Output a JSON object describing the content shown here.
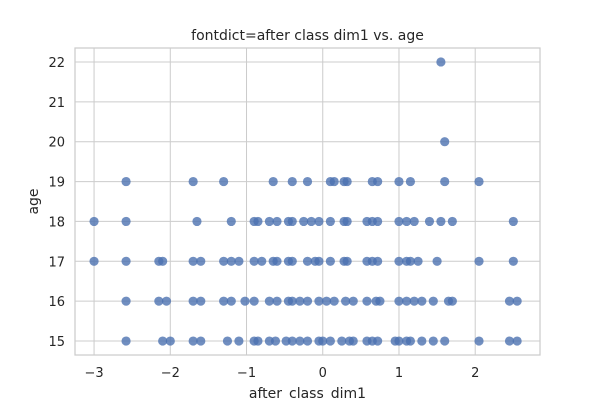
{
  "chart_data": {
    "type": "scatter",
    "title": "fontdict=after class dim1 vs. age",
    "xlabel": "after_class_dim1",
    "ylabel": "age",
    "xlim": [
      -3.25,
      2.85
    ],
    "ylim": [
      14.65,
      22.35
    ],
    "xticks": [
      -3,
      -2,
      -1,
      0,
      1,
      2
    ],
    "yticks": [
      15,
      16,
      17,
      18,
      19,
      20,
      21,
      22
    ],
    "grid": true,
    "marker_color": "#4c72b0",
    "points": [
      {
        "x": -2.58,
        "y": 15
      },
      {
        "x": -2.1,
        "y": 15
      },
      {
        "x": -2.0,
        "y": 15
      },
      {
        "x": -1.7,
        "y": 15
      },
      {
        "x": -1.6,
        "y": 15
      },
      {
        "x": -1.25,
        "y": 15
      },
      {
        "x": -1.1,
        "y": 15
      },
      {
        "x": -0.9,
        "y": 15
      },
      {
        "x": -0.85,
        "y": 15
      },
      {
        "x": -0.7,
        "y": 15
      },
      {
        "x": -0.62,
        "y": 15
      },
      {
        "x": -0.48,
        "y": 15
      },
      {
        "x": -0.4,
        "y": 15
      },
      {
        "x": -0.3,
        "y": 15
      },
      {
        "x": -0.2,
        "y": 15
      },
      {
        "x": -0.05,
        "y": 15
      },
      {
        "x": 0.0,
        "y": 15
      },
      {
        "x": 0.1,
        "y": 15
      },
      {
        "x": 0.25,
        "y": 15
      },
      {
        "x": 0.35,
        "y": 15
      },
      {
        "x": 0.4,
        "y": 15
      },
      {
        "x": 0.58,
        "y": 15
      },
      {
        "x": 0.65,
        "y": 15
      },
      {
        "x": 0.72,
        "y": 15
      },
      {
        "x": 0.95,
        "y": 15
      },
      {
        "x": 1.0,
        "y": 15
      },
      {
        "x": 1.1,
        "y": 15
      },
      {
        "x": 1.15,
        "y": 15
      },
      {
        "x": 1.3,
        "y": 15
      },
      {
        "x": 1.45,
        "y": 15
      },
      {
        "x": 1.6,
        "y": 15
      },
      {
        "x": 2.05,
        "y": 15
      },
      {
        "x": 2.45,
        "y": 15
      },
      {
        "x": 2.55,
        "y": 15
      },
      {
        "x": -2.58,
        "y": 16
      },
      {
        "x": -2.15,
        "y": 16
      },
      {
        "x": -2.05,
        "y": 16
      },
      {
        "x": -1.7,
        "y": 16
      },
      {
        "x": -1.6,
        "y": 16
      },
      {
        "x": -1.3,
        "y": 16
      },
      {
        "x": -1.2,
        "y": 16
      },
      {
        "x": -1.02,
        "y": 16
      },
      {
        "x": -0.9,
        "y": 16
      },
      {
        "x": -0.7,
        "y": 16
      },
      {
        "x": -0.6,
        "y": 16
      },
      {
        "x": -0.45,
        "y": 16
      },
      {
        "x": -0.4,
        "y": 16
      },
      {
        "x": -0.3,
        "y": 16
      },
      {
        "x": -0.2,
        "y": 16
      },
      {
        "x": -0.05,
        "y": 16
      },
      {
        "x": 0.05,
        "y": 16
      },
      {
        "x": 0.15,
        "y": 16
      },
      {
        "x": 0.3,
        "y": 16
      },
      {
        "x": 0.4,
        "y": 16
      },
      {
        "x": 0.58,
        "y": 16
      },
      {
        "x": 0.7,
        "y": 16
      },
      {
        "x": 0.75,
        "y": 16
      },
      {
        "x": 1.0,
        "y": 16
      },
      {
        "x": 1.1,
        "y": 16
      },
      {
        "x": 1.2,
        "y": 16
      },
      {
        "x": 1.3,
        "y": 16
      },
      {
        "x": 1.45,
        "y": 16
      },
      {
        "x": 1.65,
        "y": 16
      },
      {
        "x": 1.7,
        "y": 16
      },
      {
        "x": 2.45,
        "y": 16
      },
      {
        "x": 2.55,
        "y": 16
      },
      {
        "x": -3.0,
        "y": 17
      },
      {
        "x": -2.58,
        "y": 17
      },
      {
        "x": -2.15,
        "y": 17
      },
      {
        "x": -2.1,
        "y": 17
      },
      {
        "x": -1.7,
        "y": 17
      },
      {
        "x": -1.6,
        "y": 17
      },
      {
        "x": -1.3,
        "y": 17
      },
      {
        "x": -1.2,
        "y": 17
      },
      {
        "x": -1.1,
        "y": 17
      },
      {
        "x": -0.9,
        "y": 17
      },
      {
        "x": -0.8,
        "y": 17
      },
      {
        "x": -0.65,
        "y": 17
      },
      {
        "x": -0.6,
        "y": 17
      },
      {
        "x": -0.45,
        "y": 17
      },
      {
        "x": -0.4,
        "y": 17
      },
      {
        "x": -0.2,
        "y": 17
      },
      {
        "x": -0.1,
        "y": 17
      },
      {
        "x": -0.05,
        "y": 17
      },
      {
        "x": 0.1,
        "y": 17
      },
      {
        "x": 0.28,
        "y": 17
      },
      {
        "x": 0.32,
        "y": 17
      },
      {
        "x": 0.58,
        "y": 17
      },
      {
        "x": 0.65,
        "y": 17
      },
      {
        "x": 0.72,
        "y": 17
      },
      {
        "x": 1.0,
        "y": 17
      },
      {
        "x": 1.1,
        "y": 17
      },
      {
        "x": 1.15,
        "y": 17
      },
      {
        "x": 1.25,
        "y": 17
      },
      {
        "x": 1.5,
        "y": 17
      },
      {
        "x": 2.05,
        "y": 17
      },
      {
        "x": 2.5,
        "y": 17
      },
      {
        "x": -3.0,
        "y": 18
      },
      {
        "x": -2.58,
        "y": 18
      },
      {
        "x": -1.65,
        "y": 18
      },
      {
        "x": -1.2,
        "y": 18
      },
      {
        "x": -0.9,
        "y": 18
      },
      {
        "x": -0.85,
        "y": 18
      },
      {
        "x": -0.7,
        "y": 18
      },
      {
        "x": -0.6,
        "y": 18
      },
      {
        "x": -0.45,
        "y": 18
      },
      {
        "x": -0.4,
        "y": 18
      },
      {
        "x": -0.25,
        "y": 18
      },
      {
        "x": -0.15,
        "y": 18
      },
      {
        "x": -0.05,
        "y": 18
      },
      {
        "x": 0.1,
        "y": 18
      },
      {
        "x": 0.28,
        "y": 18
      },
      {
        "x": 0.32,
        "y": 18
      },
      {
        "x": 0.58,
        "y": 18
      },
      {
        "x": 0.65,
        "y": 18
      },
      {
        "x": 0.72,
        "y": 18
      },
      {
        "x": 1.0,
        "y": 18
      },
      {
        "x": 1.1,
        "y": 18
      },
      {
        "x": 1.2,
        "y": 18
      },
      {
        "x": 1.4,
        "y": 18
      },
      {
        "x": 1.55,
        "y": 18
      },
      {
        "x": 1.7,
        "y": 18
      },
      {
        "x": 2.5,
        "y": 18
      },
      {
        "x": -2.58,
        "y": 19
      },
      {
        "x": -1.7,
        "y": 19
      },
      {
        "x": -1.3,
        "y": 19
      },
      {
        "x": -0.65,
        "y": 19
      },
      {
        "x": -0.4,
        "y": 19
      },
      {
        "x": -0.2,
        "y": 19
      },
      {
        "x": 0.1,
        "y": 19
      },
      {
        "x": 0.15,
        "y": 19
      },
      {
        "x": 0.28,
        "y": 19
      },
      {
        "x": 0.32,
        "y": 19
      },
      {
        "x": 0.65,
        "y": 19
      },
      {
        "x": 0.72,
        "y": 19
      },
      {
        "x": 1.0,
        "y": 19
      },
      {
        "x": 1.15,
        "y": 19
      },
      {
        "x": 1.6,
        "y": 19
      },
      {
        "x": 2.05,
        "y": 19
      },
      {
        "x": 1.6,
        "y": 20
      },
      {
        "x": 1.55,
        "y": 22
      }
    ]
  }
}
